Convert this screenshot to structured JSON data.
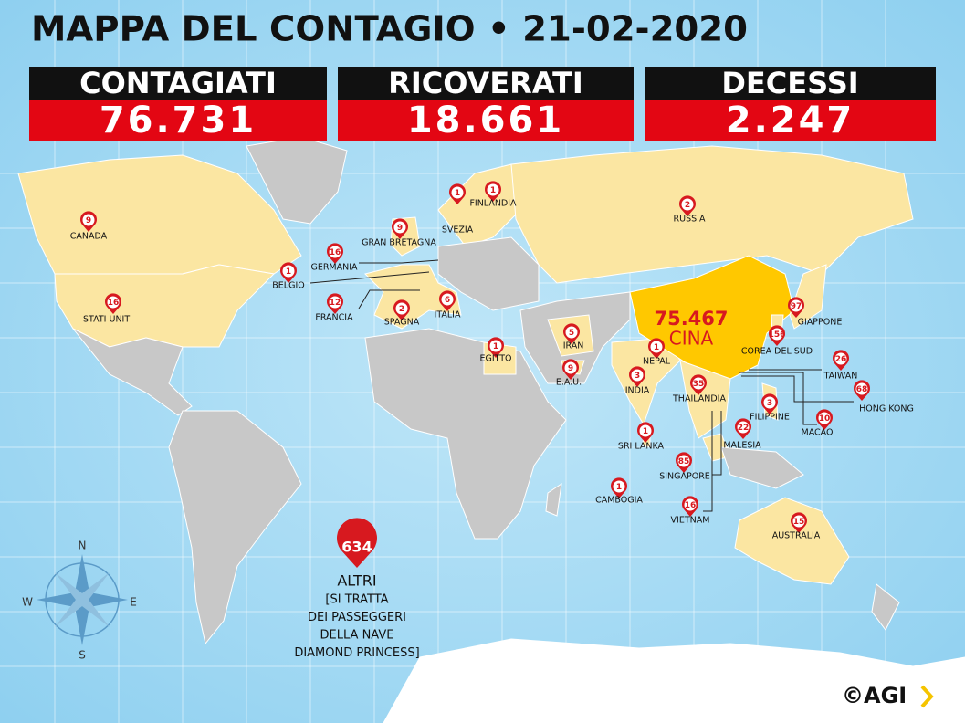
{
  "title": "MAPPA DEL CONTAGIO • 21-02-2020",
  "stats": [
    {
      "label": "CONTAGIATI",
      "value": "76.731"
    },
    {
      "label": "RICOVERATI",
      "value": "18.661"
    },
    {
      "label": "DECESSI",
      "value": "2.247"
    }
  ],
  "markers": [
    {
      "name": "CANADA",
      "count": 9
    },
    {
      "name": "STATI UNITI",
      "count": 16
    },
    {
      "name": "GERMANIA",
      "count": 16
    },
    {
      "name": "BELGIO",
      "count": 1
    },
    {
      "name": "FRANCIA",
      "count": 12
    },
    {
      "name": "GRAN BRETAGNA",
      "count": 9
    },
    {
      "name": "SPAGNA",
      "count": 2
    },
    {
      "name": "ITALIA",
      "count": 6
    },
    {
      "name": "SVEZIA",
      "count": 1
    },
    {
      "name": "FINLANDIA",
      "count": 1
    },
    {
      "name": "RUSSIA",
      "count": 2
    },
    {
      "name": "IRAN",
      "count": 5
    },
    {
      "name": "EGITTO",
      "count": 1
    },
    {
      "name": "E.A.U.",
      "count": 9
    },
    {
      "name": "NEPAL",
      "count": 1
    },
    {
      "name": "INDIA",
      "count": 3
    },
    {
      "name": "SRI LANKA",
      "count": 1
    },
    {
      "name": "THAILANDIA",
      "count": 35
    },
    {
      "name": "CAMBOGIA",
      "count": 1
    },
    {
      "name": "SINGAPORE",
      "count": 85
    },
    {
      "name": "VIETNAM",
      "count": 16
    },
    {
      "name": "MALESIA",
      "count": 22
    },
    {
      "name": "FILIPPINE",
      "count": 3
    },
    {
      "name": "MACAO",
      "count": 10
    },
    {
      "name": "HONG KONG",
      "count": 68
    },
    {
      "name": "TAIWAN",
      "count": 26
    },
    {
      "name": "COREA DEL SUD",
      "count": 156
    },
    {
      "name": "GIAPPONE",
      "count": 97
    },
    {
      "name": "AUSTRALIA",
      "count": 15
    }
  ],
  "china": {
    "count": "75.467",
    "name": "CINA"
  },
  "others": {
    "count": 634,
    "name": "ALTRI",
    "note": [
      "[SI TRATTA",
      "DEI PASSEGGERI",
      "DELLA NAVE",
      "DIAMOND PRINCESS]"
    ]
  },
  "compass": {
    "n": "N",
    "s": "S",
    "e": "E",
    "w": "W"
  },
  "logo": "©AGI"
}
